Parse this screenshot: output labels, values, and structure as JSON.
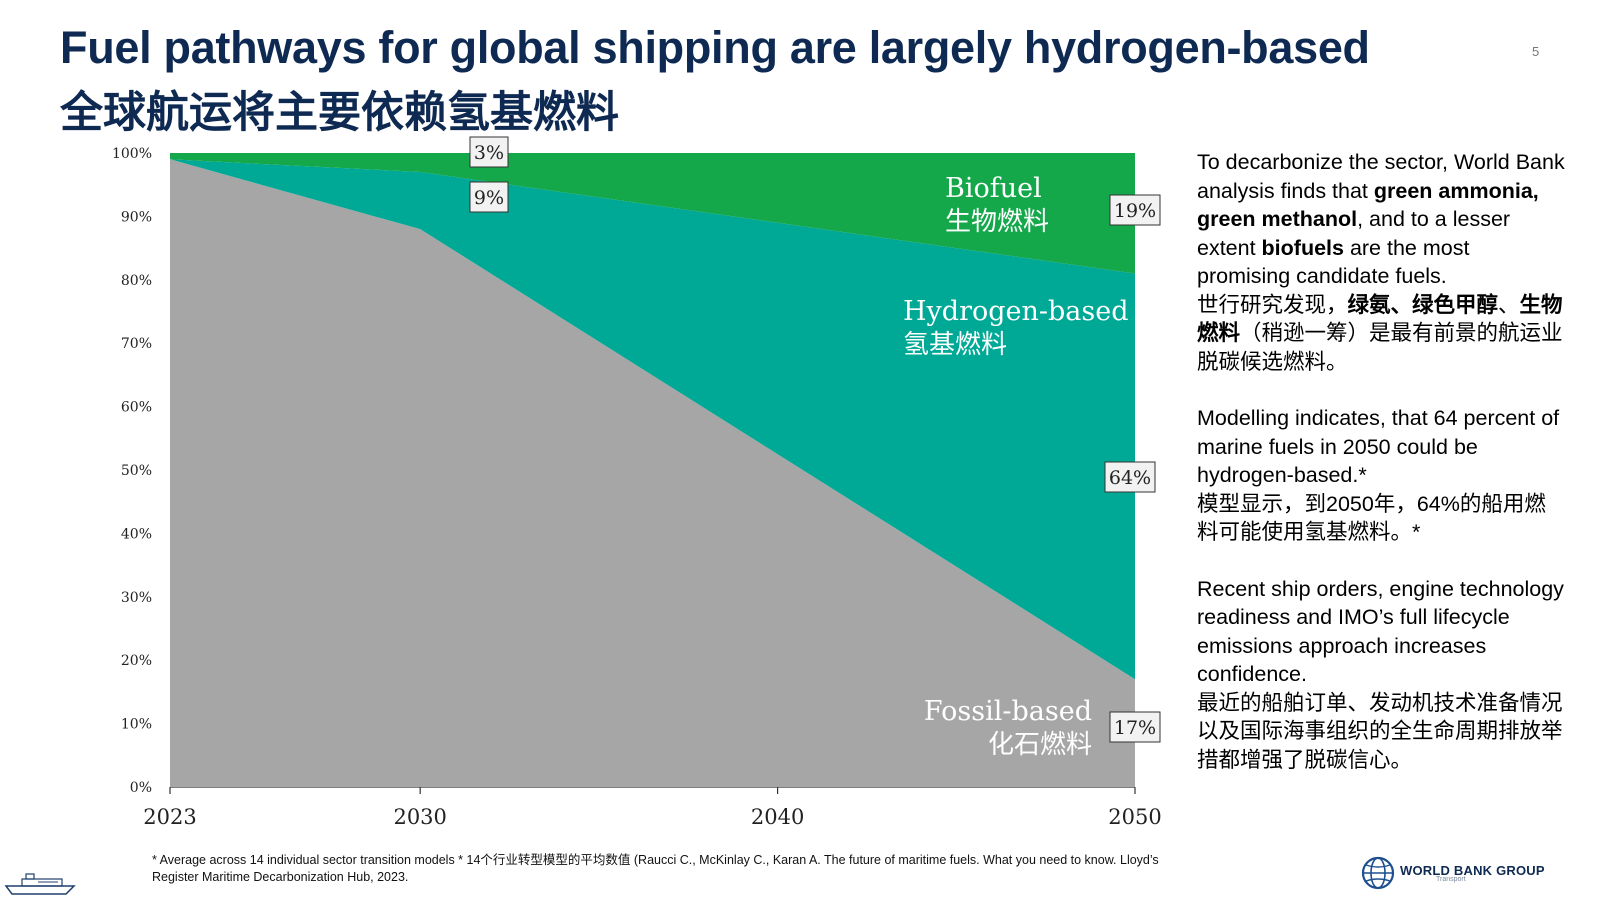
{
  "title": {
    "en": "Fuel pathways for global shipping are largely hydrogen-based",
    "zh": "全球航运将主要依赖氢基燃料"
  },
  "page_number": "5",
  "colors": {
    "title": "#0f2a52",
    "fossil": "#a6a6a6",
    "hydrogen": "#00a896",
    "biofuel": "#14a84a"
  },
  "chart_data": {
    "type": "area",
    "stacked": true,
    "x": [
      2023,
      2030,
      2050
    ],
    "x_ticks": [
      "2023",
      "2030",
      "2040",
      "2050"
    ],
    "y_ticks": [
      "0%",
      "10%",
      "20%",
      "30%",
      "40%",
      "50%",
      "60%",
      "70%",
      "80%",
      "90%",
      "100%"
    ],
    "ylim": [
      0,
      100
    ],
    "series": [
      {
        "name_en": "Fossil-based",
        "name_zh": "化石燃料",
        "values": [
          99,
          88,
          17
        ],
        "color": "#a6a6a6"
      },
      {
        "name_en": "Hydrogen-based",
        "name_zh": "氢基燃料",
        "values": [
          0,
          9,
          64
        ],
        "color": "#00a896"
      },
      {
        "name_en": "Biofuel",
        "name_zh": "生物燃料",
        "values": [
          1,
          3,
          19
        ],
        "color": "#14a84a"
      }
    ],
    "annotations": [
      {
        "text": "3%",
        "x": 2030,
        "series": "Biofuel"
      },
      {
        "text": "9%",
        "x": 2030,
        "series": "Hydrogen-based"
      },
      {
        "text": "19%",
        "x": 2050,
        "series": "Biofuel"
      },
      {
        "text": "64%",
        "x": 2050,
        "series": "Hydrogen-based"
      },
      {
        "text": "17%",
        "x": 2050,
        "series": "Fossil-based"
      }
    ]
  },
  "side_text": {
    "p1_en_1": "To decarbonize the sector, World Bank analysis finds that ",
    "p1_en_bold1": "green ammonia, green methanol",
    "p1_en_2": ", and to a lesser extent ",
    "p1_en_bold2": "biofuels",
    "p1_en_3": " are the most promising candidate fuels.",
    "p1_zh_1": "世行研究发现，",
    "p1_zh_bold1": "绿氨、绿色甲醇",
    "p1_zh_2": "、",
    "p1_zh_bold2": "生物燃料",
    "p1_zh_3": "（稍逊一筹）是最有前景的航运业脱碳候选燃料。",
    "p2_en": "Modelling indicates, that 64 percent of marine fuels in 2050 could be hydrogen-based.*",
    "p2_zh": "模型显示，到2050年，64%的船用燃料可能使用氢基燃料。*",
    "p3_en": "Recent ship orders, engine technology readiness and IMO’s full lifecycle emissions approach increases confidence.",
    "p3_zh": "最近的船舶订单、发动机技术准备情况以及国际海事组织的全生命周期排放举措都增强了脱碳信心。"
  },
  "footnote": "* Average across 14 individual sector transition models * 14个行业转型模型的平均数值 (Raucci C., McKinlay C., Karan A. The future of maritime fuels.  What you need to know. Lloyd’s Register Maritime Decarbonization Hub, 2023.",
  "logo": {
    "name": "WORLD BANK GROUP",
    "sub": "Transport"
  }
}
